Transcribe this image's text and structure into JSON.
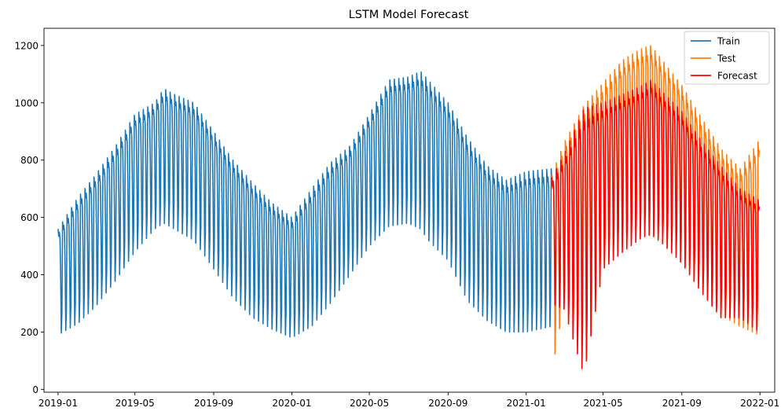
{
  "chart_data": {
    "type": "line",
    "title": "LSTM Model Forecast",
    "xlabel": "",
    "ylabel": "",
    "x_axis": {
      "kind": "date",
      "range": [
        "2018-12-10",
        "2022-01-24"
      ],
      "ticks": [
        "2019-01",
        "2019-05",
        "2019-09",
        "2020-01",
        "2020-05",
        "2020-09",
        "2021-01",
        "2021-05",
        "2021-09",
        "2022-01"
      ],
      "tick_dates": [
        "2019-01-01",
        "2019-05-01",
        "2019-09-01",
        "2020-01-01",
        "2020-05-01",
        "2020-09-01",
        "2021-01-01",
        "2021-05-01",
        "2021-09-01",
        "2022-01-01"
      ]
    },
    "y_axis": {
      "range": [
        -10,
        1260
      ],
      "ticks": [
        0,
        200,
        400,
        600,
        800,
        1000,
        1200
      ]
    },
    "grid": false,
    "legend": {
      "position": "top-right",
      "entries": [
        "Train",
        "Test",
        "Forecast"
      ]
    },
    "colors": {
      "Train": "#1f77b4",
      "Test": "#ff7f0e",
      "Forecast": "#ff0000"
    },
    "period_days": 7,
    "series": [
      {
        "name": "Train",
        "color": "#1f77b4",
        "start": "2019-01-01",
        "end": "2021-02-10",
        "envelope": {
          "dates": [
            "2019-01-01",
            "2019-02-01",
            "2019-03-01",
            "2019-04-01",
            "2019-05-01",
            "2019-06-01",
            "2019-06-15",
            "2019-07-01",
            "2019-08-01",
            "2019-09-01",
            "2019-10-01",
            "2019-11-01",
            "2019-12-01",
            "2020-01-01",
            "2020-02-01",
            "2020-03-01",
            "2020-04-01",
            "2020-05-01",
            "2020-06-01",
            "2020-07-01",
            "2020-07-20",
            "2020-08-01",
            "2020-09-01",
            "2020-10-01",
            "2020-11-01",
            "2020-12-01",
            "2021-01-01",
            "2021-02-10"
          ],
          "high": [
            560,
            670,
            750,
            850,
            960,
            1000,
            1050,
            1030,
            1000,
            900,
            800,
            720,
            650,
            600,
            700,
            790,
            850,
            960,
            1080,
            1090,
            1110,
            1080,
            1000,
            880,
            780,
            730,
            760,
            770
          ],
          "low": [
            190,
            230,
            290,
            380,
            480,
            560,
            580,
            560,
            520,
            420,
            320,
            250,
            210,
            180,
            220,
            300,
            400,
            500,
            570,
            580,
            560,
            520,
            450,
            310,
            240,
            200,
            200,
            220
          ]
        }
      },
      {
        "name": "Test",
        "color": "#ff7f0e",
        "start": "2021-02-10",
        "end": "2021-12-31",
        "envelope": {
          "dates": [
            "2021-02-10",
            "2021-03-01",
            "2021-04-01",
            "2021-05-01",
            "2021-06-01",
            "2021-07-01",
            "2021-07-15",
            "2021-08-01",
            "2021-09-01",
            "2021-10-01",
            "2021-11-01",
            "2021-12-01",
            "2021-12-31"
          ],
          "high": [
            750,
            860,
            990,
            1070,
            1150,
            1190,
            1200,
            1150,
            1060,
            950,
            840,
            770,
            870
          ],
          "low": [
            60,
            300,
            350,
            430,
            530,
            570,
            580,
            540,
            480,
            370,
            260,
            220,
            190
          ]
        }
      },
      {
        "name": "Forecast",
        "color": "#ff0000",
        "start": "2021-02-10",
        "end": "2021-12-31",
        "envelope": {
          "dates": [
            "2021-02-10",
            "2021-03-01",
            "2021-04-01",
            "2021-05-01",
            "2021-06-01",
            "2021-07-01",
            "2021-07-15",
            "2021-08-01",
            "2021-09-01",
            "2021-10-01",
            "2021-11-01",
            "2021-12-01",
            "2021-12-31"
          ],
          "high": [
            740,
            820,
            980,
            1000,
            1030,
            1060,
            1080,
            1040,
            970,
            870,
            780,
            700,
            660
          ],
          "low": [
            300,
            280,
            50,
            420,
            480,
            530,
            540,
            510,
            440,
            340,
            250,
            250,
            200
          ]
        }
      }
    ]
  }
}
